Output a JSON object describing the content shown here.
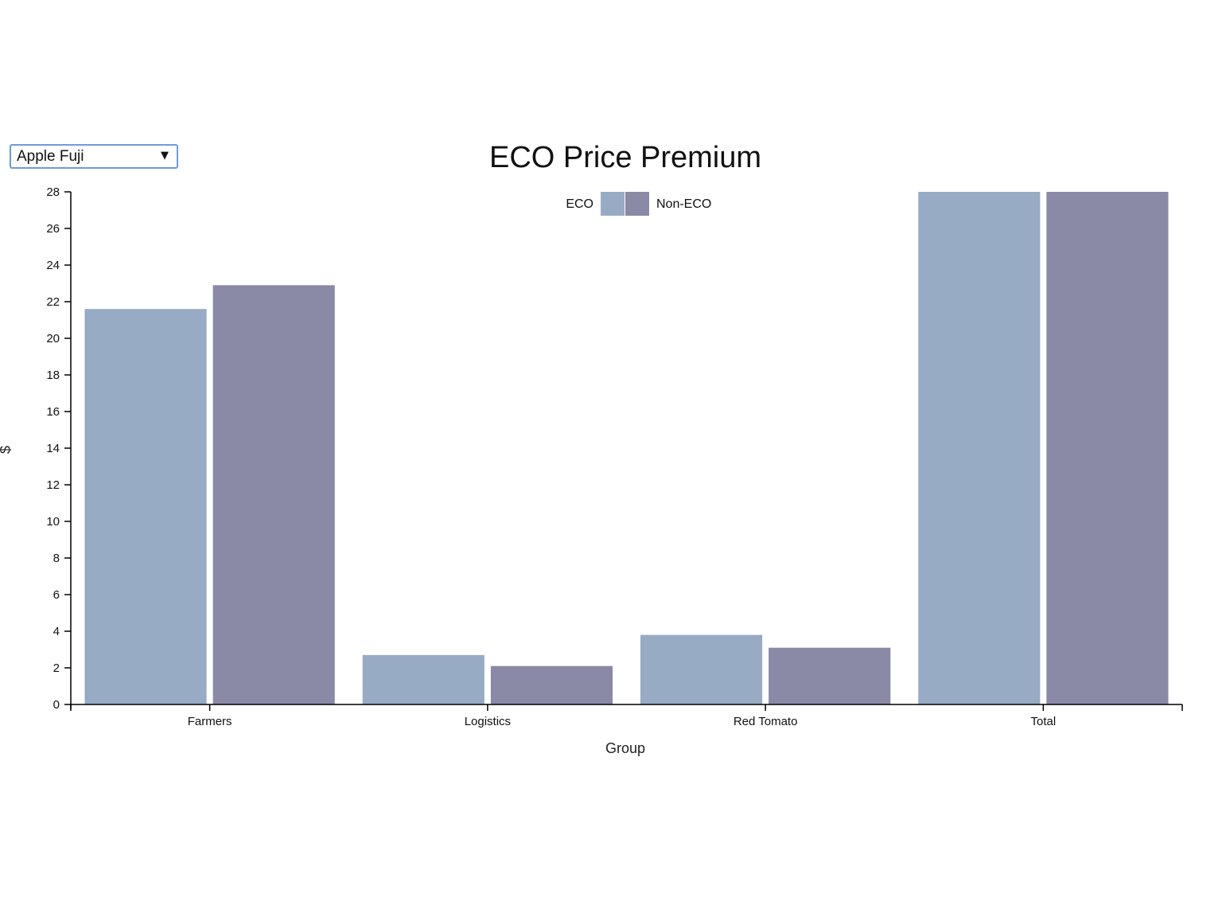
{
  "selector": {
    "value": "Apple Fuji",
    "arrow_icon": "triangle-down-icon"
  },
  "colors": {
    "ECO": "#98abc5",
    "Non-ECO": "#8a89a6",
    "selector_border": "#6f9bd6"
  },
  "chart_data": {
    "type": "bar",
    "title": "ECO Price Premium",
    "xlabel": "Group",
    "ylabel": "$",
    "categories": [
      "Farmers",
      "Logistics",
      "Red Tomato",
      "Total"
    ],
    "series": [
      {
        "name": "ECO",
        "values": [
          21.6,
          2.7,
          3.8,
          28
        ]
      },
      {
        "name": "Non-ECO",
        "values": [
          22.9,
          2.1,
          3.1,
          28
        ]
      }
    ],
    "ylim": [
      0,
      28
    ],
    "yticks": [
      0,
      2,
      4,
      6,
      8,
      10,
      12,
      14,
      16,
      18,
      20,
      22,
      24,
      26,
      28
    ],
    "grid": false,
    "legend_position": "top-center"
  }
}
